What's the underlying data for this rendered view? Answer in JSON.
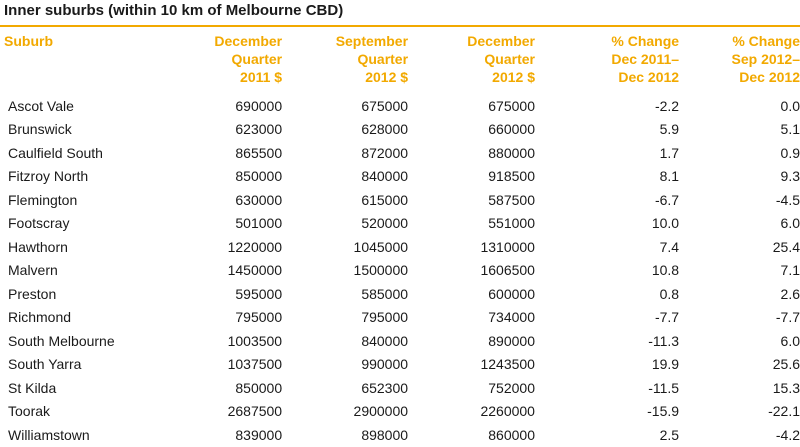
{
  "title": "Inner suburbs (within 10 km of Melbourne CBD)",
  "colors": {
    "accent": "#f2a900",
    "text": "#1a1a1a"
  },
  "headers": [
    [
      "Suburb"
    ],
    [
      "December",
      "Quarter",
      "2011 $"
    ],
    [
      "September",
      "Quarter",
      "2012 $"
    ],
    [
      "December",
      "Quarter",
      "2012 $"
    ],
    [
      "% Change",
      "Dec 2011–",
      "Dec 2012"
    ],
    [
      "% Change",
      "Sep 2012–",
      "Dec 2012"
    ]
  ],
  "rows": [
    [
      "Ascot Vale",
      "690000",
      "675000",
      "675000",
      "-2.2",
      "0.0"
    ],
    [
      "Brunswick",
      "623000",
      "628000",
      "660000",
      "5.9",
      "5.1"
    ],
    [
      "Caulfield South",
      "865500",
      "872000",
      "880000",
      "1.7",
      "0.9"
    ],
    [
      "Fitzroy North",
      "850000",
      "840000",
      "918500",
      "8.1",
      "9.3"
    ],
    [
      "Flemington",
      "630000",
      "615000",
      "587500",
      "-6.7",
      "-4.5"
    ],
    [
      "Footscray",
      "501000",
      "520000",
      "551000",
      "10.0",
      "6.0"
    ],
    [
      "Hawthorn",
      "1220000",
      "1045000",
      "1310000",
      "7.4",
      "25.4"
    ],
    [
      "Malvern",
      "1450000",
      "1500000",
      "1606500",
      "10.8",
      "7.1"
    ],
    [
      "Preston",
      "595000",
      "585000",
      "600000",
      "0.8",
      "2.6"
    ],
    [
      "Richmond",
      "795000",
      "795000",
      "734000",
      "-7.7",
      "-7.7"
    ],
    [
      "South Melbourne",
      "1003500",
      "840000",
      "890000",
      "-11.3",
      "6.0"
    ],
    [
      "South Yarra",
      "1037500",
      "990000",
      "1243500",
      "19.9",
      "25.6"
    ],
    [
      "St Kilda",
      "850000",
      "652300",
      "752000",
      "-11.5",
      "15.3"
    ],
    [
      "Toorak",
      "2687500",
      "2900000",
      "2260000",
      "-15.9",
      "-22.1"
    ],
    [
      "Williamstown",
      "839000",
      "898000",
      "860000",
      "2.5",
      "-4.2"
    ]
  ]
}
